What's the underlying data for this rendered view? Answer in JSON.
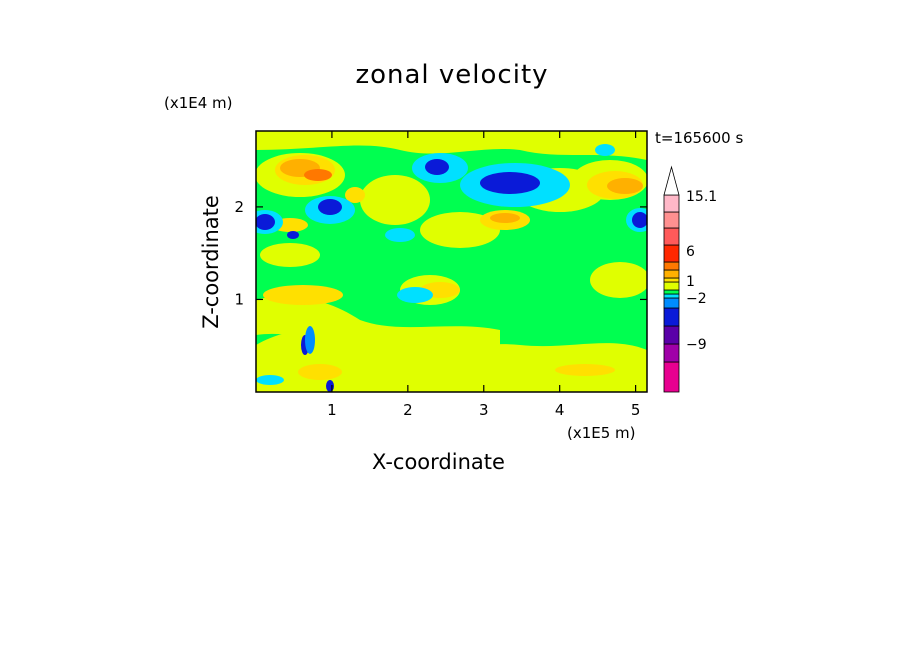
{
  "chart_data": {
    "type": "heatmap",
    "title": "zonal velocity",
    "xlabel": "X-coordinate",
    "ylabel": "Z-coordinate",
    "x_unit": "(x1E5 m)",
    "y_unit": "(x1E4 m)",
    "time_label": "t=165600 s",
    "xlim": [
      0,
      5.15
    ],
    "ylim": [
      0,
      2.82
    ],
    "x_ticks": [
      "1",
      "2",
      "3",
      "4",
      "5"
    ],
    "y_ticks": [
      "1",
      "2"
    ],
    "colorbar": {
      "labels": [
        "15.1",
        "6",
        "1",
        "-2",
        "-9"
      ],
      "level_colors": [
        "#e80090",
        "#a000a8",
        "#5a00a8",
        "#0a1ad8",
        "#008cff",
        "#00e0ff",
        "#00ff50",
        "#e0ff00",
        "#ffe000",
        "#ffb000",
        "#ff7800",
        "#ff2800",
        "#ff5a5a",
        "#ff9090",
        "#ffb8c8",
        "#ffffff"
      ],
      "extend": "max"
    },
    "background_level": "green",
    "features": [
      {
        "name": "blue jet core",
        "x": 3.3,
        "z": 2.25,
        "sign": "negative"
      },
      {
        "name": "blue cell",
        "x": 2.35,
        "z": 2.45,
        "sign": "negative"
      },
      {
        "name": "blue cell",
        "x": 0.9,
        "z": 2.05,
        "sign": "negative"
      },
      {
        "name": "blue cell",
        "x": 0.1,
        "z": 1.9,
        "sign": "negative"
      },
      {
        "name": "blue cell",
        "x": 5.0,
        "z": 1.85,
        "sign": "negative"
      },
      {
        "name": "orange cell",
        "x": 0.7,
        "z": 2.45,
        "sign": "positive"
      },
      {
        "name": "orange cell",
        "x": 4.85,
        "z": 2.25,
        "sign": "positive"
      },
      {
        "name": "orange cell",
        "x": 3.2,
        "z": 1.8,
        "sign": "positive"
      },
      {
        "name": "yellow band",
        "x": 2.6,
        "z": 0.5,
        "sign": "positive"
      }
    ]
  }
}
